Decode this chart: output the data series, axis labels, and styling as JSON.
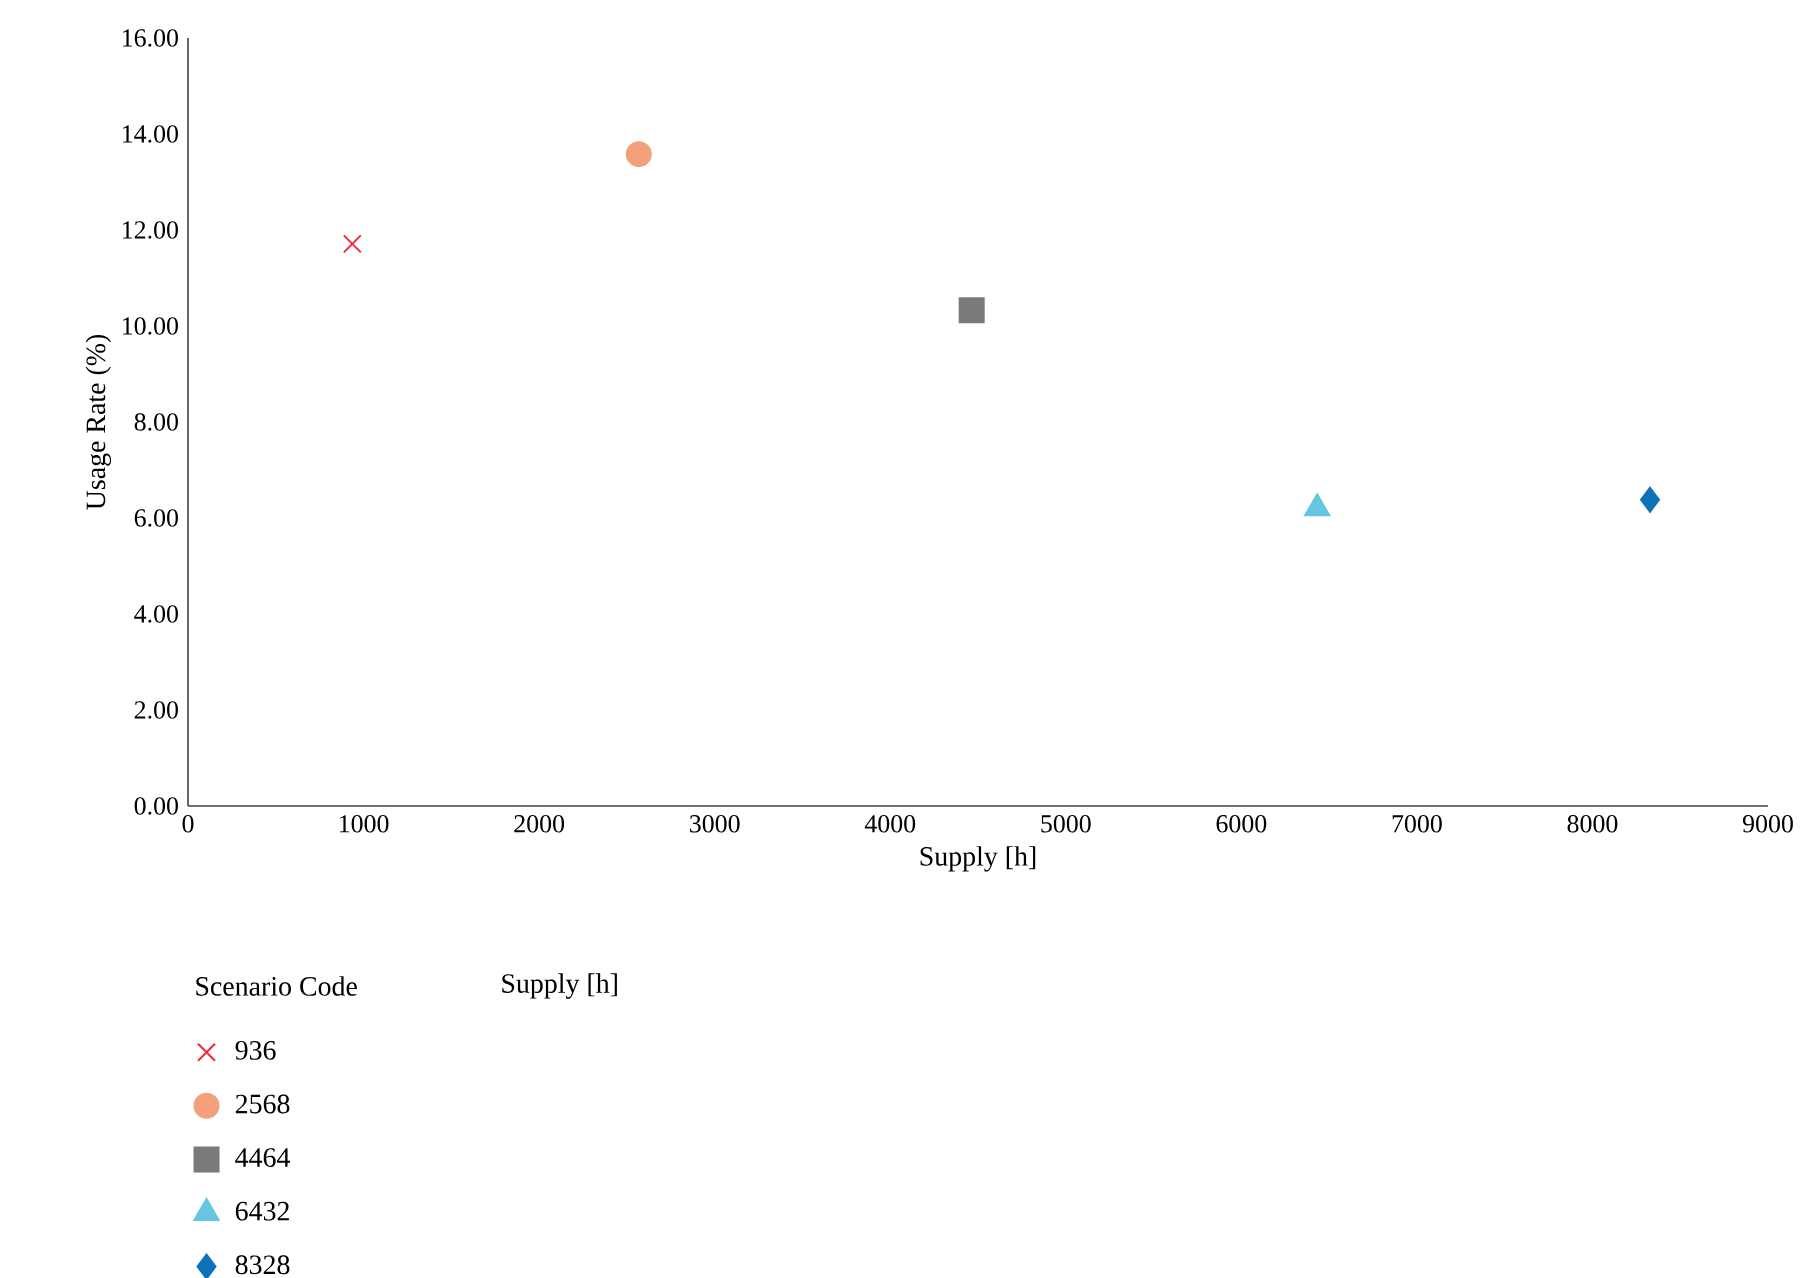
{
  "chart_data": {
    "type": "scatter",
    "xlabel": "Supply [h]",
    "ylabel": "Usage Rate (%)",
    "xlim": [
      0,
      9000
    ],
    "xticks": [
      0,
      1000,
      2000,
      3000,
      4000,
      5000,
      6000,
      7000,
      8000,
      9000
    ],
    "ylim": [
      0,
      16
    ],
    "yticks": [
      {
        "value": 0,
        "label": "0.00"
      },
      {
        "value": 2,
        "label": "2.00"
      },
      {
        "value": 4,
        "label": "4.00"
      },
      {
        "value": 6,
        "label": "6.00"
      },
      {
        "value": 8,
        "label": "8.00"
      },
      {
        "value": 10,
        "label": "10.00"
      },
      {
        "value": 12,
        "label": "12.00"
      },
      {
        "value": 14,
        "label": "14.00"
      },
      {
        "value": 16,
        "label": "16.00"
      }
    ],
    "legend": "bottom",
    "legend_title": "Scenario Code",
    "annotations": [
      "Supply [h]"
    ],
    "series": [
      {
        "name": "936",
        "color": "#ee2a3a",
        "marker": "cross",
        "x": [
          936
        ],
        "values": [
          11.71
        ]
      },
      {
        "name": "2568",
        "color": "#f4a07c",
        "marker": "circle",
        "x": [
          2568
        ],
        "values": [
          13.58
        ]
      },
      {
        "name": "4464",
        "color": "#7a7a7d",
        "marker": "square",
        "x": [
          4464
        ],
        "values": [
          10.33
        ]
      },
      {
        "name": "6432",
        "color": "#66c5e0",
        "marker": "triangle",
        "x": [
          6432
        ],
        "values": [
          6.2
        ]
      },
      {
        "name": "8328",
        "color": "#0e72b8",
        "marker": "diamond",
        "x": [
          8328
        ],
        "values": [
          6.38
        ]
      }
    ]
  }
}
